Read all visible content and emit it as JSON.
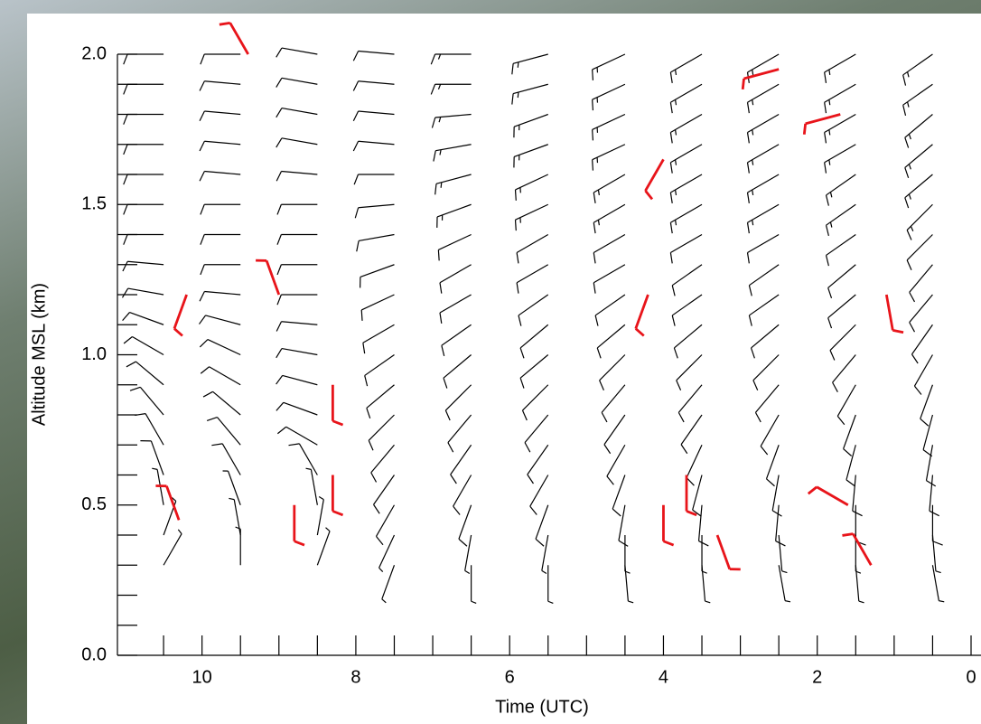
{
  "chart_data": {
    "type": "barbs",
    "xlabel": "Time (UTC)",
    "ylabel": "Altitude MSL (km)",
    "xlim": [
      11.1,
      0
    ],
    "ylim": [
      0,
      2.0
    ],
    "xticks": [
      10,
      8,
      6,
      4,
      2,
      0
    ],
    "yticks": [
      {
        "value": 0,
        "label": "0.0"
      },
      0.5,
      {
        "value": 1,
        "label": "1.0"
      },
      1.5,
      {
        "value": 2,
        "label": "2.0"
      }
    ],
    "xminorticks": [
      10.5,
      9.5,
      9,
      8.5,
      7.5,
      7,
      6.5,
      5.5,
      5,
      4.5,
      3.5,
      3,
      2.5,
      1.5,
      1,
      0.5
    ],
    "yminorticks": [
      0.1,
      0.2,
      0.3,
      0.4,
      0.6,
      0.7,
      0.8,
      0.9,
      1.1,
      1.2,
      1.3,
      1.4,
      1.6,
      1.7,
      1.8,
      1.9
    ],
    "grid_x": [
      10.5,
      9.5,
      8.5,
      7.5,
      6.5,
      5.5,
      4.5,
      3.5,
      2.5,
      1.5,
      0.5
    ],
    "grid_y": [
      0.3,
      0.4,
      0.5,
      0.6,
      0.7,
      0.8,
      0.9,
      1.0,
      1.1,
      1.2,
      1.3,
      1.4,
      1.5,
      1.6,
      1.7,
      1.8,
      1.9,
      2.0
    ],
    "color": "#000000",
    "direction": [
      [
        30,
        0,
        20,
        200,
        180,
        180,
        175,
        175,
        170,
        175,
        170
      ],
      [
        20,
        350,
        10,
        205,
        190,
        190,
        180,
        180,
        175,
        180,
        175
      ],
      [
        350,
        340,
        350,
        210,
        200,
        200,
        190,
        185,
        185,
        180,
        180
      ],
      [
        340,
        330,
        330,
        215,
        210,
        210,
        200,
        195,
        190,
        185,
        185
      ],
      [
        330,
        320,
        300,
        220,
        215,
        215,
        210,
        205,
        200,
        195,
        190
      ],
      [
        320,
        310,
        290,
        225,
        220,
        220,
        215,
        215,
        210,
        200,
        195
      ],
      [
        310,
        300,
        285,
        230,
        225,
        225,
        220,
        220,
        220,
        210,
        200
      ],
      [
        300,
        295,
        280,
        235,
        230,
        230,
        225,
        225,
        225,
        220,
        210
      ],
      [
        290,
        285,
        275,
        240,
        235,
        230,
        230,
        230,
        230,
        225,
        215
      ],
      [
        280,
        275,
        270,
        245,
        240,
        235,
        235,
        235,
        235,
        230,
        220
      ],
      [
        275,
        270,
        270,
        250,
        240,
        240,
        240,
        235,
        235,
        230,
        220
      ],
      [
        270,
        270,
        270,
        260,
        245,
        240,
        240,
        240,
        240,
        235,
        225
      ],
      [
        270,
        270,
        270,
        265,
        250,
        245,
        240,
        240,
        240,
        235,
        225
      ],
      [
        270,
        275,
        275,
        270,
        255,
        245,
        240,
        240,
        240,
        235,
        230
      ],
      [
        270,
        275,
        280,
        275,
        260,
        250,
        245,
        240,
        240,
        240,
        230
      ],
      [
        270,
        275,
        280,
        275,
        265,
        250,
        245,
        240,
        240,
        240,
        230
      ],
      [
        270,
        275,
        280,
        275,
        270,
        255,
        245,
        240,
        240,
        240,
        235
      ],
      [
        270,
        270,
        280,
        275,
        270,
        255,
        245,
        240,
        240,
        240,
        235
      ]
    ],
    "speed": [
      [
        5,
        5,
        5,
        5,
        5,
        5,
        5,
        5,
        5,
        5,
        5
      ],
      [
        5,
        5,
        5,
        5,
        5,
        5,
        5,
        5,
        5,
        5,
        5
      ],
      [
        5,
        5,
        5,
        10,
        10,
        10,
        10,
        10,
        10,
        10,
        10
      ],
      [
        10,
        10,
        10,
        10,
        10,
        10,
        10,
        10,
        10,
        10,
        10
      ],
      [
        10,
        10,
        10,
        10,
        10,
        10,
        10,
        10,
        10,
        10,
        10
      ],
      [
        10,
        10,
        10,
        10,
        10,
        10,
        10,
        10,
        10,
        10,
        10
      ],
      [
        10,
        10,
        10,
        10,
        10,
        10,
        10,
        10,
        10,
        10,
        10
      ],
      [
        10,
        10,
        10,
        10,
        10,
        10,
        10,
        10,
        10,
        10,
        10
      ],
      [
        10,
        10,
        10,
        10,
        10,
        10,
        10,
        10,
        10,
        10,
        10
      ],
      [
        10,
        10,
        10,
        10,
        10,
        10,
        10,
        10,
        10,
        10,
        10
      ],
      [
        10,
        10,
        10,
        10,
        10,
        10,
        10,
        10,
        10,
        10,
        10
      ],
      [
        10,
        10,
        10,
        10,
        10,
        10,
        10,
        10,
        10,
        10,
        10
      ],
      [
        10,
        10,
        10,
        10,
        15,
        15,
        15,
        15,
        15,
        15,
        15
      ],
      [
        10,
        10,
        10,
        10,
        15,
        15,
        15,
        15,
        15,
        15,
        15
      ],
      [
        10,
        10,
        10,
        10,
        15,
        15,
        15,
        15,
        15,
        15,
        15
      ],
      [
        10,
        10,
        10,
        10,
        15,
        15,
        15,
        15,
        15,
        15,
        15
      ],
      [
        10,
        10,
        10,
        10,
        15,
        15,
        15,
        15,
        15,
        15,
        15
      ],
      [
        10,
        10,
        10,
        10,
        15,
        15,
        15,
        15,
        15,
        15,
        15
      ]
    ],
    "flagged": {
      "color": "#e8141a",
      "x": [
        10.3,
        10.2,
        9.0,
        8.3,
        8.3,
        8.8,
        4.2,
        4.0,
        3.7,
        3.3,
        1.6,
        1.3,
        9.4,
        2.5,
        1.7,
        4.0,
        1.1
      ],
      "y": [
        0.45,
        1.2,
        1.2,
        0.9,
        0.6,
        0.5,
        1.2,
        0.5,
        0.6,
        0.4,
        0.5,
        0.3,
        2.0,
        1.95,
        1.8,
        1.65,
        1.2
      ],
      "direction": [
        340,
        200,
        340,
        180,
        180,
        180,
        200,
        180,
        180,
        160,
        300,
        330,
        330,
        255,
        255,
        210,
        170
      ],
      "speed": [
        10,
        10,
        10,
        10,
        10,
        10,
        10,
        10,
        10,
        10,
        10,
        10,
        10,
        10,
        10,
        10,
        10
      ]
    }
  }
}
